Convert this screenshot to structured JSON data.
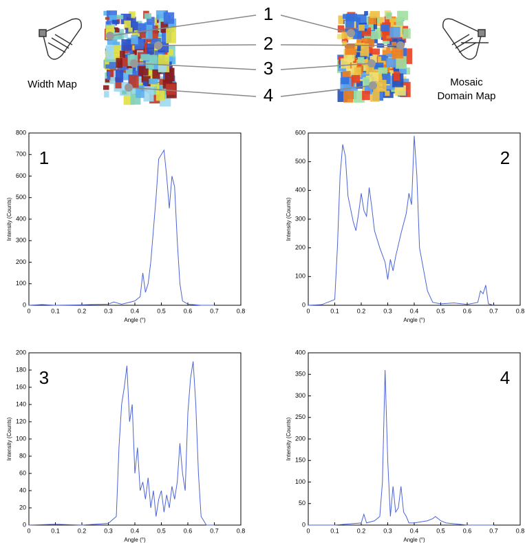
{
  "diagram": {
    "left_label": "Width Map",
    "right_label_lines": [
      "Mosaic",
      "Domain Map"
    ],
    "markers": [
      "1",
      "2",
      "3",
      "4"
    ]
  },
  "chart_data": [
    {
      "type": "line",
      "annotation": "1",
      "x_label": "Angle (°)",
      "y_label": "Intensity (Counts)",
      "color": "#4a62d6",
      "x": [
        0,
        0.05,
        0.1,
        0.2,
        0.3,
        0.32,
        0.35,
        0.4,
        0.42,
        0.43,
        0.44,
        0.45,
        0.46,
        0.47,
        0.48,
        0.49,
        0.5,
        0.51,
        0.52,
        0.53,
        0.54,
        0.55,
        0.56,
        0.57,
        0.58,
        0.6,
        0.65,
        0.7
      ],
      "values": [
        0,
        3,
        0,
        2,
        5,
        15,
        5,
        20,
        40,
        150,
        60,
        100,
        200,
        350,
        500,
        680,
        700,
        720,
        600,
        450,
        600,
        550,
        300,
        100,
        20,
        5,
        0,
        0
      ],
      "xlim": [
        0,
        0.8
      ],
      "xticks": [
        0,
        0.1,
        0.2,
        0.3,
        0.4,
        0.5,
        0.6,
        0.7,
        0.8
      ],
      "ylim": [
        0,
        800
      ],
      "yticks": [
        0,
        100,
        200,
        300,
        400,
        500,
        600,
        700,
        800
      ]
    },
    {
      "type": "line",
      "annotation": "2",
      "x_label": "Angle (°)",
      "y_label": "Intensity (Counts)",
      "color": "#4a62d6",
      "x": [
        0,
        0.05,
        0.1,
        0.11,
        0.12,
        0.13,
        0.14,
        0.15,
        0.17,
        0.18,
        0.19,
        0.2,
        0.21,
        0.22,
        0.23,
        0.24,
        0.25,
        0.27,
        0.29,
        0.3,
        0.31,
        0.32,
        0.33,
        0.35,
        0.37,
        0.38,
        0.39,
        0.4,
        0.41,
        0.42,
        0.43,
        0.44,
        0.45,
        0.47,
        0.5,
        0.55,
        0.6,
        0.64,
        0.65,
        0.66,
        0.67,
        0.68,
        0.7
      ],
      "values": [
        0,
        2,
        20,
        200,
        450,
        560,
        520,
        380,
        290,
        260,
        320,
        390,
        330,
        310,
        410,
        340,
        260,
        200,
        150,
        90,
        160,
        120,
        170,
        250,
        320,
        390,
        350,
        590,
        450,
        200,
        150,
        100,
        50,
        10,
        5,
        8,
        3,
        10,
        50,
        40,
        70,
        5,
        0
      ],
      "xlim": [
        0,
        0.8
      ],
      "xticks": [
        0,
        0.1,
        0.2,
        0.3,
        0.4,
        0.5,
        0.6,
        0.7,
        0.8
      ],
      "ylim": [
        0,
        600
      ],
      "yticks": [
        0,
        100,
        200,
        300,
        400,
        500,
        600
      ]
    },
    {
      "type": "line",
      "annotation": "3",
      "x_label": "Angle (°)",
      "y_label": "Intensity (Counts)",
      "color": "#4a62d6",
      "x": [
        0,
        0.1,
        0.2,
        0.3,
        0.33,
        0.34,
        0.35,
        0.36,
        0.37,
        0.38,
        0.39,
        0.4,
        0.41,
        0.42,
        0.43,
        0.44,
        0.45,
        0.46,
        0.47,
        0.48,
        0.49,
        0.5,
        0.51,
        0.52,
        0.53,
        0.54,
        0.55,
        0.56,
        0.57,
        0.58,
        0.59,
        0.6,
        0.61,
        0.62,
        0.63,
        0.64,
        0.65,
        0.67,
        0.7
      ],
      "values": [
        0,
        1,
        0,
        2,
        10,
        90,
        140,
        160,
        185,
        120,
        140,
        60,
        90,
        40,
        50,
        30,
        55,
        20,
        40,
        10,
        30,
        40,
        15,
        35,
        20,
        45,
        30,
        50,
        95,
        60,
        40,
        130,
        170,
        190,
        140,
        60,
        10,
        0,
        0
      ],
      "xlim": [
        0,
        0.8
      ],
      "xticks": [
        0,
        0.1,
        0.2,
        0.3,
        0.4,
        0.5,
        0.6,
        0.7,
        0.8
      ],
      "ylim": [
        0,
        200
      ],
      "yticks": [
        0,
        20,
        40,
        60,
        80,
        100,
        120,
        140,
        160,
        180,
        200
      ]
    },
    {
      "type": "line",
      "annotation": "4",
      "x_label": "Angle (°)",
      "y_label": "Intensity (Counts)",
      "color": "#4a62d6",
      "x": [
        0,
        0.1,
        0.2,
        0.21,
        0.22,
        0.25,
        0.27,
        0.28,
        0.29,
        0.3,
        0.31,
        0.32,
        0.33,
        0.34,
        0.35,
        0.36,
        0.37,
        0.38,
        0.4,
        0.45,
        0.47,
        0.48,
        0.5,
        0.52,
        0.6,
        0.7
      ],
      "values": [
        0,
        0,
        5,
        25,
        5,
        10,
        20,
        100,
        360,
        150,
        20,
        90,
        30,
        40,
        90,
        30,
        20,
        5,
        5,
        10,
        15,
        20,
        10,
        5,
        0,
        0
      ],
      "xlim": [
        0,
        0.8
      ],
      "xticks": [
        0,
        0.1,
        0.2,
        0.3,
        0.4,
        0.5,
        0.6,
        0.7,
        0.8
      ],
      "ylim": [
        0,
        400
      ],
      "yticks": [
        0,
        50,
        100,
        150,
        200,
        250,
        300,
        350,
        400
      ]
    }
  ]
}
